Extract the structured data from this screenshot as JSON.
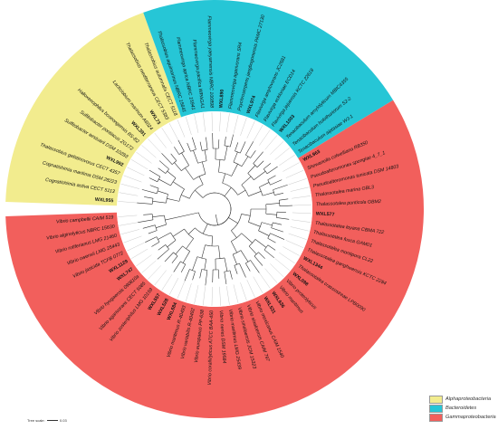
{
  "colors": {
    "alphaproteobacteria": "#f2ec8e",
    "bacteroidetes": "#26c6d6",
    "gammaproteobacteria": "#f25f5c",
    "branch": "#333333"
  },
  "legend": [
    {
      "label": "Alphaproteobacteria",
      "color": "#f2ec8e"
    },
    {
      "label": "Bacteroidetes",
      "color": "#26c6d6"
    },
    {
      "label": "Gammaproteobacteria",
      "color": "#f25f5c"
    }
  ],
  "scale": {
    "label": "Tree scale:",
    "value": "0.03"
  },
  "taxa": [
    {
      "name": "WXL955",
      "clade": "alphaproteobacteria",
      "bold": true
    },
    {
      "name": "Cognatishimia activa CECT 5113",
      "clade": "alphaproteobacteria",
      "bold": false
    },
    {
      "name": "Cognatishimia maritima DSM 28223",
      "clade": "alphaproteobacteria",
      "bold": false
    },
    {
      "name": "Thalassobius gelatinovorus CECT 4357",
      "clade": "alphaproteobacteria",
      "bold": false
    },
    {
      "name": "WXL992",
      "clade": "alphaproteobacteria",
      "bold": true
    },
    {
      "name": "Sulfitobacter aestuarii DSM 10283",
      "clade": "alphaproteobacteria",
      "bold": false
    },
    {
      "name": "Sulfitobacter pontiacus ZG172",
      "clade": "alphaproteobacteria",
      "bold": false
    },
    {
      "name": "Halioxenophilus boseongensis BS-B2",
      "clade": "alphaproteobacteria",
      "bold": false
    },
    {
      "name": "WXL391",
      "clade": "alphaproteobacteria",
      "bold": true
    },
    {
      "name": "Lacticiobium marinum A6024",
      "clade": "alphaproteobacteria",
      "bold": false
    },
    {
      "name": "WXL73",
      "clade": "alphaproteobacteria",
      "bold": true
    },
    {
      "name": "Thalassobius mediterraneus CECT 5383",
      "clade": "alphaproteobacteria",
      "bold": false
    },
    {
      "name": "Thalassobius autumnalis CECT 5118",
      "clade": "alphaproteobacteria",
      "bold": false
    },
    {
      "name": "Thalassobius aquimarinus NBRC 15641",
      "clade": "bacteroidetes",
      "bold": false
    },
    {
      "name": "Flammeovirga aprica NBRC 15941",
      "clade": "bacteroidetes",
      "bold": false
    },
    {
      "name": "Flammeovirga pacifica WPAGA1",
      "clade": "bacteroidetes",
      "bold": false
    },
    {
      "name": "Flammeovirga yaeyamensis NBRC 100898",
      "clade": "bacteroidetes",
      "bold": false
    },
    {
      "name": "WXL890",
      "clade": "bacteroidetes",
      "bold": true
    },
    {
      "name": "Flammeovirga agarivorans SR4",
      "clade": "bacteroidetes",
      "bold": false
    },
    {
      "name": "Psychroserpens jangbogonensis PAMC 27130",
      "clade": "bacteroidetes",
      "bold": false
    },
    {
      "name": "WXL974",
      "clade": "bacteroidetes",
      "bold": true
    },
    {
      "name": "Flavivirga amylovorans JC2681",
      "clade": "bacteroidetes",
      "bold": false
    },
    {
      "name": "Flavivirga eckloniae ECD14",
      "clade": "bacteroidetes",
      "bold": false
    },
    {
      "name": "Flavivirga jejuensis KCTC 22618",
      "clade": "bacteroidetes",
      "bold": false
    },
    {
      "name": "WXL1003",
      "clade": "bacteroidetes",
      "bold": true
    },
    {
      "name": "Tenacibaculum amylolyticum MBIC4355",
      "clade": "bacteroidetes",
      "bold": false
    },
    {
      "name": "Tenacibaculum holothuriorum S2-2",
      "clade": "bacteroidetes",
      "bold": false
    },
    {
      "name": "Tenacibaculum aiptasiae WJ-1",
      "clade": "bacteroidetes",
      "bold": false
    },
    {
      "name": "WXL963",
      "clade": "gammaproteobacteria",
      "bold": true
    },
    {
      "name": "Shewanella colwelliana RB350",
      "clade": "gammaproteobacteria",
      "bold": false
    },
    {
      "name": "Pseudoalteromonas spongiae 4_7_1",
      "clade": "gammaproteobacteria",
      "bold": false
    },
    {
      "name": "Pseudoalteromonas tunicata DSM 14803",
      "clade": "gammaproteobacteria",
      "bold": false
    },
    {
      "name": "Thalassotalea marina GBL3",
      "clade": "gammaproteobacteria",
      "bold": false
    },
    {
      "name": "Thalassotalea ponticola GBM2",
      "clade": "gammaproteobacteria",
      "bold": false
    },
    {
      "name": "WXL577",
      "clade": "gammaproteobacteria",
      "bold": true
    },
    {
      "name": "Thalassotalea loyana CBMA 722",
      "clade": "gammaproteobacteria",
      "bold": false
    },
    {
      "name": "Thalassotalea fusca GAM01",
      "clade": "gammaproteobacteria",
      "bold": false
    },
    {
      "name": "Thalassotalea montipora CL22",
      "clade": "gammaproteobacteria",
      "bold": false
    },
    {
      "name": "Thalassotalea ganghwensis KCTC 2284",
      "clade": "gammaproteobacteria",
      "bold": false
    },
    {
      "name": "WXL1344",
      "clade": "gammaproteobacteria",
      "bold": true
    },
    {
      "name": "Thalassotalea crassostreae LPB0090",
      "clade": "gammaproteobacteria",
      "bold": false
    },
    {
      "name": "WXL098",
      "clade": "gammaproteobacteria",
      "bold": true
    },
    {
      "name": "Vibrio proteolyticus",
      "clade": "gammaproteobacteria",
      "bold": false
    },
    {
      "name": "Vibrio maritimus",
      "clade": "gammaproteobacteria",
      "bold": false
    },
    {
      "name": "WXL636",
      "clade": "gammaproteobacteria",
      "bold": true
    },
    {
      "name": "WXL531",
      "clade": "gammaproteobacteria",
      "bold": true
    },
    {
      "name": "Vibrio mexicanus CAIM 1540",
      "clade": "gammaproteobacteria",
      "bold": false
    },
    {
      "name": "Vibrio sinaloensis CAIM 797",
      "clade": "gammaproteobacteria",
      "bold": false
    },
    {
      "name": "Vibrio sinaloensis JCM 15323",
      "clade": "gammaproteobacteria",
      "bold": false
    },
    {
      "name": "Vibrio maritimus LMG 25439",
      "clade": "gammaproteobacteria",
      "bold": false
    },
    {
      "name": "Vibrio neries DSM 19584",
      "clade": "gammaproteobacteria",
      "bold": false
    },
    {
      "name": "Vibrio coralliilyticus ATCC BAA-450",
      "clade": "gammaproteobacteria",
      "bold": false
    },
    {
      "name": "Vibrio europaeus PP-638",
      "clade": "gammaproteobacteria",
      "bold": false
    },
    {
      "name": "Vibrio variabilis R-40492",
      "clade": "gammaproteobacteria",
      "bold": false
    },
    {
      "name": "Vibrio maritimus R-40493",
      "clade": "gammaproteobacteria",
      "bold": false
    },
    {
      "name": "WXL684",
      "clade": "gammaproteobacteria",
      "bold": true
    },
    {
      "name": "WXL528",
      "clade": "gammaproteobacteria",
      "bold": true
    },
    {
      "name": "WXL557",
      "clade": "gammaproteobacteria",
      "bold": true
    },
    {
      "name": "Vibrio zosteriphilus LMG 10159",
      "clade": "gammaproteobacteria",
      "bold": false
    },
    {
      "name": "Vibrio agarivorans CECT 5085",
      "clade": "gammaproteobacteria",
      "bold": false
    },
    {
      "name": "Vibrio hyugaensis 090810a",
      "clade": "gammaproteobacteria",
      "bold": false
    },
    {
      "name": "WXL747",
      "clade": "gammaproteobacteria",
      "bold": true
    },
    {
      "name": "WXL1129",
      "clade": "gammaproteobacteria",
      "bold": true
    },
    {
      "name": "Vibrio jasicida TCFB 0772",
      "clade": "gammaproteobacteria",
      "bold": false
    },
    {
      "name": "Vibrio owensii LMG 25443",
      "clade": "gammaproteobacteria",
      "bold": false
    },
    {
      "name": "Vibrio rotiferianus LMG 21460",
      "clade": "gammaproteobacteria",
      "bold": false
    },
    {
      "name": "Vibrio alginolyticus NBRC 15630",
      "clade": "gammaproteobacteria",
      "bold": false
    },
    {
      "name": "Vibrio campbellii CAIM 519",
      "clade": "gammaproteobacteria",
      "bold": false
    }
  ]
}
